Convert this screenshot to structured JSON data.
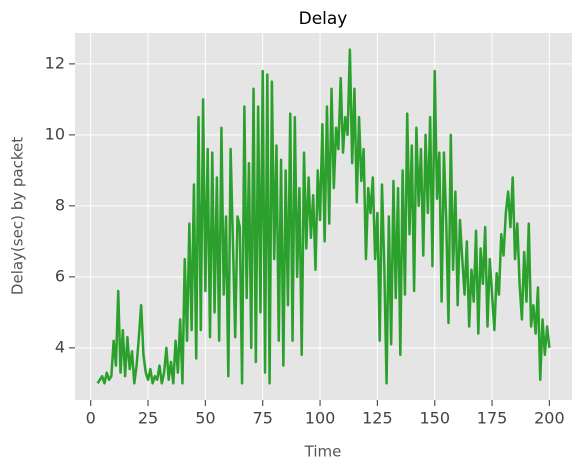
{
  "chart_data": {
    "type": "line",
    "title": "Delay",
    "x_label": "Time",
    "y_label": "Delay(sec) by packet",
    "x": [
      3,
      4,
      5,
      6,
      7,
      8,
      9,
      10,
      11,
      12,
      13,
      14,
      15,
      16,
      17,
      18,
      19,
      20,
      21,
      22,
      23,
      24,
      25,
      26,
      27,
      28,
      29,
      30,
      31,
      32,
      33,
      34,
      35,
      36,
      37,
      38,
      39,
      40,
      41,
      42,
      43,
      44,
      45,
      46,
      47,
      48,
      49,
      50,
      51,
      52,
      53,
      54,
      55,
      56,
      57,
      58,
      59,
      60,
      61,
      62,
      63,
      64,
      65,
      66,
      67,
      68,
      69,
      70,
      71,
      72,
      73,
      74,
      75,
      76,
      77,
      78,
      79,
      80,
      81,
      82,
      83,
      84,
      85,
      86,
      87,
      88,
      89,
      90,
      91,
      92,
      93,
      94,
      95,
      96,
      97,
      98,
      99,
      100,
      101,
      102,
      103,
      104,
      105,
      106,
      107,
      108,
      109,
      110,
      111,
      112,
      113,
      114,
      115,
      116,
      117,
      118,
      119,
      120,
      121,
      122,
      123,
      124,
      125,
      126,
      127,
      128,
      129,
      130,
      131,
      132,
      133,
      134,
      135,
      136,
      137,
      138,
      139,
      140,
      141,
      142,
      143,
      144,
      145,
      146,
      147,
      148,
      149,
      150,
      151,
      152,
      153,
      154,
      155,
      156,
      157,
      158,
      159,
      160,
      161,
      162,
      163,
      164,
      165,
      166,
      167,
      168,
      169,
      170,
      171,
      172,
      173,
      174,
      175,
      176,
      177,
      178,
      179,
      180,
      181,
      182,
      183,
      184,
      185,
      186,
      187,
      188,
      189,
      190,
      191,
      192,
      193,
      194,
      195,
      196,
      197,
      198,
      199,
      200
    ],
    "series": [
      {
        "name": "Delay",
        "color": "#2ca02c",
        "values": [
          3,
          3.1,
          3.2,
          3,
          3.3,
          3.1,
          3.2,
          4.2,
          3.5,
          5.6,
          3.3,
          4.5,
          3.2,
          4.3,
          3.4,
          3.9,
          3,
          3.5,
          4.3,
          5.2,
          3.8,
          3.3,
          3.1,
          3.4,
          3,
          3.2,
          3.1,
          3.5,
          3,
          3.3,
          4,
          3.1,
          3.6,
          3,
          4.2,
          3.3,
          4.8,
          3,
          6.5,
          4.2,
          7.5,
          4.5,
          8.6,
          3.7,
          10.5,
          4.5,
          11,
          5.6,
          9.6,
          4.3,
          9.5,
          5,
          8.8,
          4.2,
          10.2,
          5.5,
          7.7,
          3.2,
          9.6,
          7,
          4.3,
          7.7,
          7.4,
          3,
          10.8,
          5.4,
          9.2,
          4,
          11.3,
          3.6,
          10.8,
          5,
          11.8,
          3.3,
          11.7,
          3,
          11.5,
          6.5,
          9.7,
          4.2,
          9.3,
          3.5,
          9,
          5.2,
          10.6,
          4.2,
          10.5,
          6,
          8.5,
          3.8,
          9.5,
          6.8,
          8.8,
          7.1,
          8.3,
          6.2,
          9,
          7.6,
          10.3,
          7,
          10.8,
          7.5,
          11.3,
          8.5,
          10.2,
          9.6,
          11.6,
          9.5,
          10.5,
          10,
          12.4,
          9.2,
          11.3,
          8.1,
          10.5,
          8.7,
          9.6,
          6.5,
          8.5,
          7.8,
          8.8,
          6.5,
          7.8,
          4.2,
          8.6,
          6.3,
          3,
          7.7,
          4.1,
          8.7,
          5.4,
          8.5,
          3.8,
          9,
          5.5,
          10.6,
          7.2,
          9.7,
          5.6,
          10.2,
          8,
          9.6,
          6.6,
          10,
          7.8,
          10.5,
          6.3,
          11.8,
          8.2,
          9.5,
          5.3,
          9.5,
          7.6,
          4.7,
          10,
          6.2,
          8.4,
          5.2,
          7.6,
          6.5,
          5.5,
          7,
          4.6,
          6.2,
          5.3,
          7.3,
          4.4,
          6.8,
          5.8,
          7.4,
          4.6,
          6.5,
          5.5,
          4.5,
          6.1,
          5.5,
          7.2,
          6.6,
          7.8,
          8.4,
          7.4,
          8.8,
          6.5,
          7.5,
          5.8,
          4.8,
          6.7,
          5.3,
          7.5,
          4.6,
          5.2,
          4.4,
          5.7,
          3.1,
          4.8,
          3.8,
          4.6,
          4
        ]
      }
    ],
    "xlim": [
      -6.85,
      209.85
    ],
    "ylim": [
      2.53,
      12.87
    ],
    "xticks": [
      0,
      25,
      50,
      75,
      100,
      125,
      150,
      175,
      200
    ],
    "yticks": [
      4,
      6,
      8,
      10,
      12
    ],
    "grid": true
  }
}
